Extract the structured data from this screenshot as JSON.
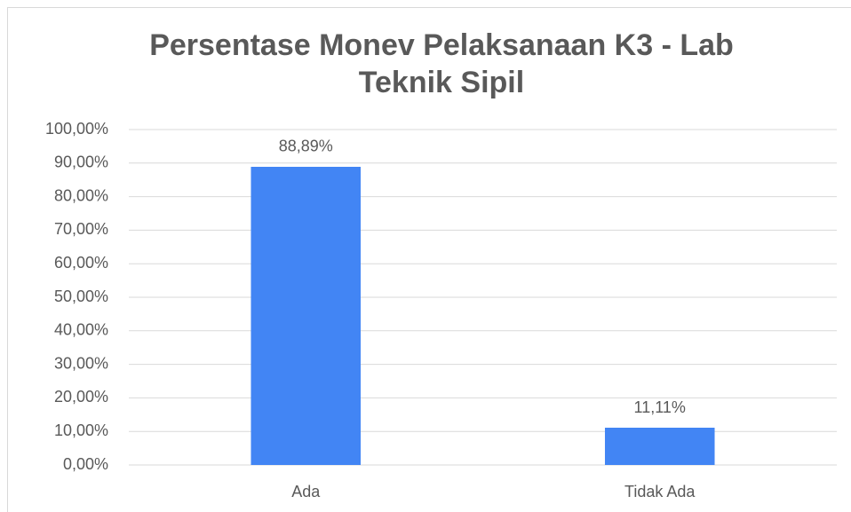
{
  "chart_data": {
    "type": "bar",
    "title": "Persentase Monev Pelaksanaan K3 - Lab Teknik Sipil",
    "categories": [
      "Ada",
      "Tidak Ada"
    ],
    "values": [
      88.89,
      11.11
    ],
    "value_labels": [
      "88,89%",
      "11,11%"
    ],
    "color": "#4285f4",
    "ylim": [
      0,
      100
    ],
    "yticks": [
      {
        "value": 0,
        "label": "0,00%"
      },
      {
        "value": 10,
        "label": "10,00%"
      },
      {
        "value": 20,
        "label": "20,00%"
      },
      {
        "value": 30,
        "label": "30,00%"
      },
      {
        "value": 40,
        "label": "40,00%"
      },
      {
        "value": 50,
        "label": "50,00%"
      },
      {
        "value": 60,
        "label": "60,00%"
      },
      {
        "value": 70,
        "label": "70,00%"
      },
      {
        "value": 80,
        "label": "80,00%"
      },
      {
        "value": 90,
        "label": "90,00%"
      },
      {
        "value": 100,
        "label": "100,00%"
      }
    ],
    "grid": true
  }
}
